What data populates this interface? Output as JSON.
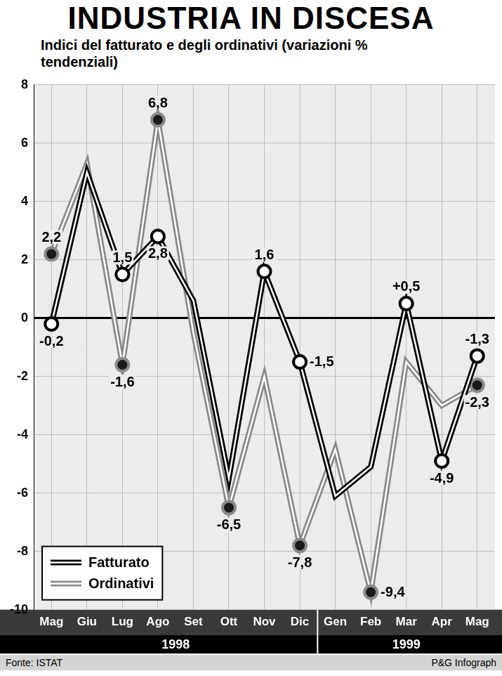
{
  "chart_data": {
    "type": "line",
    "title": "INDUSTRIA IN DISCESA",
    "subtitle": "Indici del fatturato e degli ordinativi (variazioni % tendenziali)",
    "categories": [
      "Mag",
      "Giu",
      "Lug",
      "Ago",
      "Set",
      "Ott",
      "Nov",
      "Dic",
      "Gen",
      "Feb",
      "Mar",
      "Apr",
      "Mag"
    ],
    "groups": [
      {
        "label": "1998",
        "start": 0,
        "end": 7
      },
      {
        "label": "1999",
        "start": 8,
        "end": 12
      }
    ],
    "series": [
      {
        "name": "Fatturato",
        "color": "#000000",
        "marker": "circle",
        "values": [
          -0.2,
          5.0,
          1.5,
          2.8,
          0.6,
          -5.5,
          1.6,
          -1.5,
          -6.1,
          -5.1,
          0.5,
          -4.9,
          -1.3
        ],
        "value_labels": [
          "-0,2",
          null,
          "1,5",
          "2,8",
          null,
          null,
          "1,6",
          "-1,5",
          null,
          null,
          "+0,5",
          "-4,9",
          "-1,3"
        ]
      },
      {
        "name": "Ordinativi",
        "color": "#8a8a8a",
        "marker": "circle",
        "values": [
          2.2,
          5.3,
          -1.6,
          6.8,
          -0.5,
          -6.5,
          -2.0,
          -7.8,
          -4.5,
          -9.4,
          -1.5,
          -3.0,
          -2.3
        ],
        "value_labels": [
          "2,2",
          null,
          "-1,6",
          "6,8",
          null,
          "-6,5",
          null,
          "-7,8",
          null,
          "-9,4",
          null,
          null,
          "-2,3"
        ]
      }
    ],
    "ylim": [
      -10,
      8
    ],
    "yticks": [
      -10,
      -8,
      -6,
      -4,
      -2,
      0,
      2,
      4,
      6,
      8
    ],
    "grid": true,
    "legend": "lower left",
    "data_labels": true,
    "source": "Fonte: ISTAT",
    "credit": "P&G Infograph"
  }
}
